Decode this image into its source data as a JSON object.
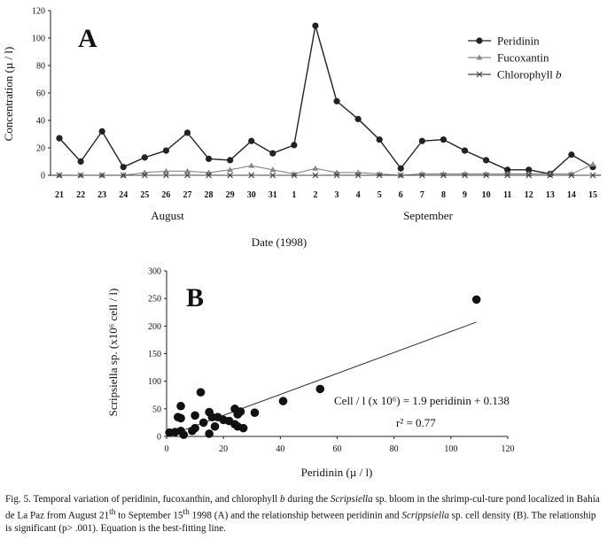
{
  "chart_data": [
    {
      "type": "line",
      "panel": "A",
      "xlabel": "Date (1998)",
      "ylabel": "Concentration (µ / l)",
      "ylim": [
        0,
        120
      ],
      "yticks": [
        "0",
        "20",
        "40",
        "60",
        "80",
        "100",
        "120"
      ],
      "categories": [
        "21",
        "22",
        "23",
        "24",
        "25",
        "26",
        "27",
        "28",
        "29",
        "30",
        "31",
        "1",
        "2",
        "3",
        "4",
        "5",
        "6",
        "7",
        "8",
        "9",
        "10",
        "11",
        "12",
        "13",
        "14",
        "15"
      ],
      "months": [
        {
          "label": "August"
        },
        {
          "label": "September"
        }
      ],
      "legend_position": "top-right",
      "series": [
        {
          "name": "Peridinin",
          "marker": "circle",
          "color": "#222222",
          "values": [
            27,
            10,
            32,
            6,
            13,
            18,
            31,
            12,
            11,
            25,
            16,
            22,
            109,
            54,
            41,
            26,
            5,
            25,
            26,
            18,
            11,
            4,
            4,
            1,
            15,
            6
          ]
        },
        {
          "name": "Fucoxantin",
          "marker": "triangle",
          "color": "#888888",
          "values": [
            0,
            0,
            0,
            0,
            2,
            3,
            3,
            2,
            4,
            7,
            4,
            1,
            5,
            2,
            2,
            1,
            0,
            1,
            1,
            1,
            1,
            1,
            1,
            1,
            1,
            8
          ]
        },
        {
          "name": "Chlorophyll b",
          "name_italic_part": "b",
          "marker": "x",
          "color": "#444444",
          "values": [
            0,
            0,
            0,
            0,
            0,
            0,
            0,
            0,
            0,
            0,
            0,
            0,
            0,
            0,
            0,
            0,
            0,
            0,
            0,
            0,
            0,
            0,
            0,
            0,
            0,
            0
          ]
        }
      ]
    },
    {
      "type": "scatter",
      "panel": "B",
      "xlabel": "Peridinin (µ / l)",
      "ylabel": "Scripsiella sp. (x10⁶ cell / l)",
      "xlim": [
        0,
        120
      ],
      "ylim": [
        0,
        300
      ],
      "xticks": [
        "0",
        "20",
        "40",
        "60",
        "80",
        "100",
        "120"
      ],
      "yticks": [
        "0",
        "50",
        "100",
        "150",
        "200",
        "250",
        "300"
      ],
      "points": [
        [
          1,
          7
        ],
        [
          3,
          8
        ],
        [
          4,
          35
        ],
        [
          5,
          33
        ],
        [
          5,
          10
        ],
        [
          5,
          55
        ],
        [
          6,
          3
        ],
        [
          9,
          10
        ],
        [
          10,
          38
        ],
        [
          10,
          15
        ],
        [
          12,
          80
        ],
        [
          13,
          25
        ],
        [
          15,
          5
        ],
        [
          15,
          44
        ],
        [
          16,
          35
        ],
        [
          17,
          18
        ],
        [
          18,
          35
        ],
        [
          20,
          30
        ],
        [
          22,
          28
        ],
        [
          24,
          50
        ],
        [
          24,
          22
        ],
        [
          25,
          18
        ],
        [
          25,
          40
        ],
        [
          26,
          45
        ],
        [
          27,
          15
        ],
        [
          31,
          43
        ],
        [
          41,
          64
        ],
        [
          54,
          86
        ],
        [
          109,
          248
        ]
      ],
      "fit": {
        "slope": 1.9,
        "intercept": 0.138,
        "x_range": [
          4,
          109
        ]
      },
      "equation_text": "Cell / l (x 10⁶) = 1.9 peridinin + 0.138",
      "r2_text": "r² = 0.77"
    }
  ],
  "caption": {
    "prefix": "Fig. 5. Temporal variation of peridinin, fucoxanthin, and chlorophyll ",
    "b": "b",
    "mid1": "  during the ",
    "genus1": "Scripsiella",
    "mid2": " sp. bloom in the shrimp-cul-ture pond localized in Bahía de La Paz from August 21",
    "th1": "th",
    "mid3": " to September 15",
    "th2": "th",
    "mid4": " 1998 (A) and the relationship between peridinin and ",
    "genus2": "Scrippsiella",
    "suffix": " sp. cell density (B). The relationship is significant (p> .001). Equation is the best-fitting line."
  }
}
